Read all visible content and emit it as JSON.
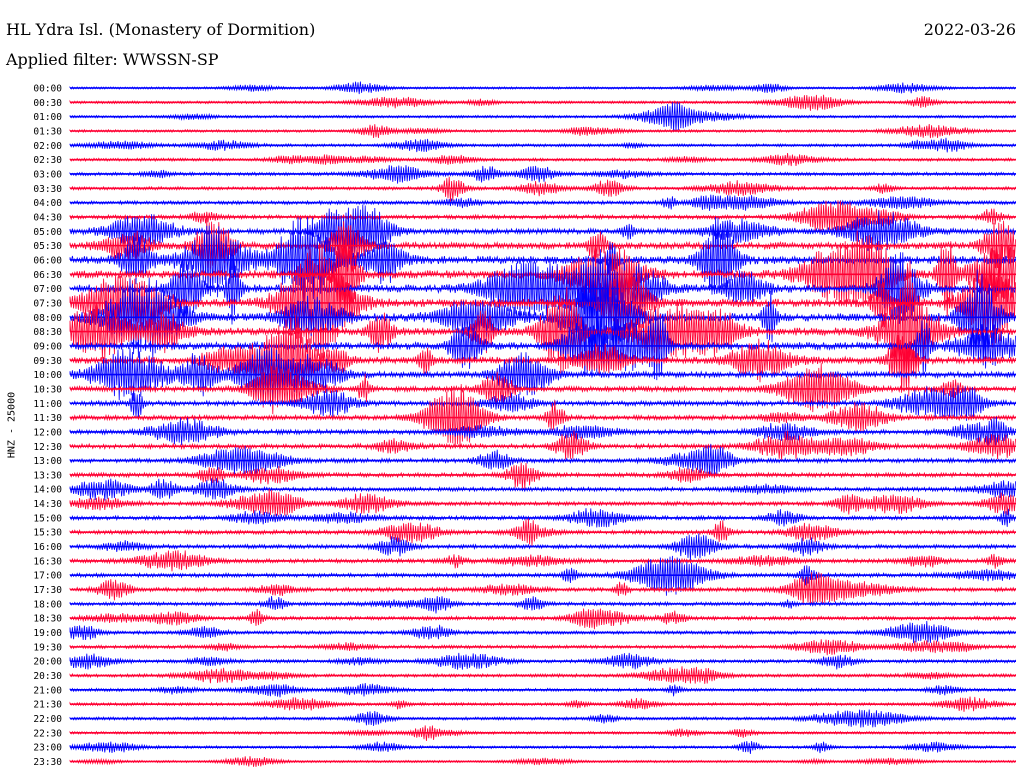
{
  "header": {
    "title": "HL Ydra Isl. (Monastery of Dormition)",
    "date": "2022-03-26",
    "filter": "Applied filter: WWSSN-SP"
  },
  "colors": {
    "blue": "#0000ff",
    "red": "#ff0033"
  },
  "chart_data": {
    "type": "line",
    "title": "HL Ydra Isl. (Monastery of Dormition)",
    "ylabel": "HNZ - 25000",
    "row_labels": [
      "00:00",
      "00:30",
      "01:00",
      "01:30",
      "02:00",
      "02:30",
      "03:00",
      "03:30",
      "04:00",
      "04:30",
      "05:00",
      "05:30",
      "06:00",
      "06:30",
      "07:00",
      "07:30",
      "08:00",
      "08:30",
      "09:00",
      "09:30",
      "10:00",
      "10:30",
      "11:00",
      "11:30",
      "12:00",
      "12:30",
      "13:00",
      "13:30",
      "14:00",
      "14:30",
      "15:00",
      "15:30",
      "16:00",
      "16:30",
      "17:00",
      "17:30",
      "18:00",
      "18:30",
      "19:00",
      "19:30",
      "20:00",
      "20:30",
      "21:00",
      "21:30",
      "22:00",
      "22:30",
      "23:00",
      "23:30"
    ],
    "row_activity": [
      0.15,
      0.2,
      0.2,
      0.2,
      0.25,
      0.25,
      0.3,
      0.3,
      0.35,
      0.4,
      0.6,
      0.8,
      1.0,
      1.0,
      1.0,
      1.0,
      1.0,
      0.95,
      0.9,
      0.8,
      0.7,
      0.6,
      0.55,
      0.5,
      0.5,
      0.5,
      0.45,
      0.45,
      0.4,
      0.4,
      0.4,
      0.4,
      0.4,
      0.4,
      0.4,
      0.4,
      0.35,
      0.35,
      0.3,
      0.3,
      0.3,
      0.3,
      0.25,
      0.25,
      0.25,
      0.2,
      0.2,
      0.15
    ],
    "legend": "none"
  }
}
